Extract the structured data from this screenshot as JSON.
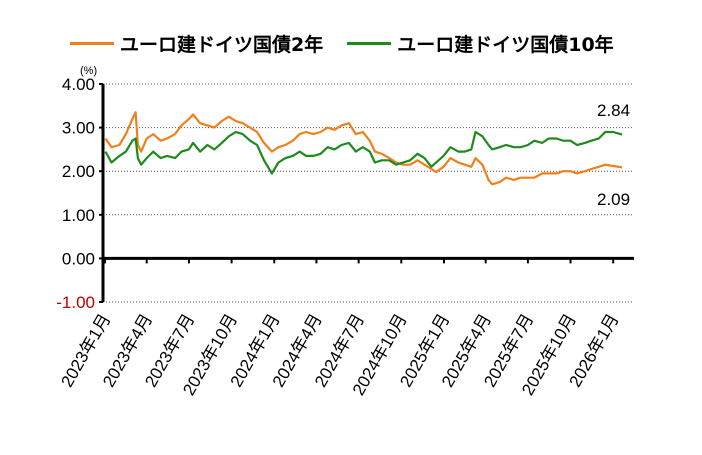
{
  "chart_data": {
    "type": "line",
    "unit_label": "(%)",
    "y_ticks": [
      "4.00",
      "3.00",
      "2.00",
      "1.00",
      "0.00",
      "-1.00"
    ],
    "y_tick_values": [
      4,
      3,
      2,
      1,
      0,
      -1
    ],
    "negative_tick_color": "#c00000",
    "ylim": [
      -1,
      4
    ],
    "grid": "horizontal dotted",
    "legend_placement": "top",
    "x_range": [
      "2023-01-01",
      "2026-01-20"
    ],
    "x_ticks": [
      {
        "date": "2023-01-01",
        "label": "2023年1月"
      },
      {
        "date": "2023-04-01",
        "label": "2023年4月"
      },
      {
        "date": "2023-07-01",
        "label": "2023年7月"
      },
      {
        "date": "2023-10-01",
        "label": "2023年10月"
      },
      {
        "date": "2024-01-01",
        "label": "2024年1月"
      },
      {
        "date": "2024-04-01",
        "label": "2024年4月"
      },
      {
        "date": "2024-07-01",
        "label": "2024年7月"
      },
      {
        "date": "2024-10-01",
        "label": "2024年10月"
      },
      {
        "date": "2025-01-01",
        "label": "2025年1月"
      },
      {
        "date": "2025-04-01",
        "label": "2025年4月"
      },
      {
        "date": "2025-07-01",
        "label": "2025年7月"
      },
      {
        "date": "2025-10-01",
        "label": "2025年10月"
      },
      {
        "date": "2026-01-01",
        "label": "2026年1月"
      }
    ],
    "series": [
      {
        "name": "ユーロ建ドイツ国債2年",
        "color": "#f07f1c",
        "end_label": "2.09",
        "points": [
          [
            "2023-01-02",
            2.75
          ],
          [
            "2023-01-15",
            2.55
          ],
          [
            "2023-02-01",
            2.6
          ],
          [
            "2023-02-15",
            2.85
          ],
          [
            "2023-03-01",
            3.2
          ],
          [
            "2023-03-08",
            3.35
          ],
          [
            "2023-03-13",
            2.6
          ],
          [
            "2023-03-20",
            2.45
          ],
          [
            "2023-04-01",
            2.75
          ],
          [
            "2023-04-15",
            2.85
          ],
          [
            "2023-05-01",
            2.7
          ],
          [
            "2023-05-15",
            2.75
          ],
          [
            "2023-06-01",
            2.85
          ],
          [
            "2023-06-15",
            3.05
          ],
          [
            "2023-07-01",
            3.2
          ],
          [
            "2023-07-10",
            3.3
          ],
          [
            "2023-07-25",
            3.1
          ],
          [
            "2023-08-10",
            3.05
          ],
          [
            "2023-08-25",
            3.0
          ],
          [
            "2023-09-10",
            3.15
          ],
          [
            "2023-09-25",
            3.25
          ],
          [
            "2023-10-10",
            3.15
          ],
          [
            "2023-10-25",
            3.1
          ],
          [
            "2023-11-10",
            3.0
          ],
          [
            "2023-11-25",
            2.9
          ],
          [
            "2023-12-10",
            2.65
          ],
          [
            "2023-12-27",
            2.45
          ],
          [
            "2024-01-10",
            2.55
          ],
          [
            "2024-01-25",
            2.6
          ],
          [
            "2024-02-10",
            2.7
          ],
          [
            "2024-02-25",
            2.85
          ],
          [
            "2024-03-10",
            2.9
          ],
          [
            "2024-03-25",
            2.85
          ],
          [
            "2024-04-10",
            2.9
          ],
          [
            "2024-04-25",
            3.0
          ],
          [
            "2024-05-10",
            2.95
          ],
          [
            "2024-05-25",
            3.05
          ],
          [
            "2024-06-10",
            3.1
          ],
          [
            "2024-06-25",
            2.85
          ],
          [
            "2024-07-10",
            2.9
          ],
          [
            "2024-07-25",
            2.7
          ],
          [
            "2024-08-05",
            2.45
          ],
          [
            "2024-08-20",
            2.4
          ],
          [
            "2024-09-05",
            2.3
          ],
          [
            "2024-09-20",
            2.2
          ],
          [
            "2024-10-05",
            2.15
          ],
          [
            "2024-10-20",
            2.15
          ],
          [
            "2024-11-05",
            2.25
          ],
          [
            "2024-11-20",
            2.15
          ],
          [
            "2024-12-05",
            2.05
          ],
          [
            "2024-12-15",
            1.98
          ],
          [
            "2024-12-31",
            2.1
          ],
          [
            "2025-01-15",
            2.3
          ],
          [
            "2025-02-01",
            2.2
          ],
          [
            "2025-02-15",
            2.15
          ],
          [
            "2025-03-01",
            2.1
          ],
          [
            "2025-03-10",
            2.3
          ],
          [
            "2025-03-25",
            2.15
          ],
          [
            "2025-04-07",
            1.8
          ],
          [
            "2025-04-15",
            1.7
          ],
          [
            "2025-05-01",
            1.75
          ],
          [
            "2025-05-15",
            1.85
          ],
          [
            "2025-06-01",
            1.8
          ],
          [
            "2025-06-15",
            1.85
          ],
          [
            "2025-07-01",
            1.85
          ],
          [
            "2025-07-15",
            1.85
          ],
          [
            "2025-08-01",
            1.95
          ],
          [
            "2025-08-15",
            1.95
          ],
          [
            "2025-09-01",
            1.95
          ],
          [
            "2025-09-15",
            2.0
          ],
          [
            "2025-10-01",
            2.0
          ],
          [
            "2025-10-15",
            1.95
          ],
          [
            "2025-11-01",
            2.0
          ],
          [
            "2025-11-15",
            2.05
          ],
          [
            "2025-12-01",
            2.1
          ],
          [
            "2025-12-15",
            2.15
          ],
          [
            "2026-01-01",
            2.12
          ],
          [
            "2026-01-20",
            2.09
          ]
        ]
      },
      {
        "name": "ユーロ建ドイツ国債10年",
        "color": "#1e8a1e",
        "end_label": "2.84",
        "points": [
          [
            "2023-01-02",
            2.45
          ],
          [
            "2023-01-15",
            2.2
          ],
          [
            "2023-02-01",
            2.35
          ],
          [
            "2023-02-15",
            2.45
          ],
          [
            "2023-03-01",
            2.7
          ],
          [
            "2023-03-08",
            2.75
          ],
          [
            "2023-03-13",
            2.3
          ],
          [
            "2023-03-20",
            2.15
          ],
          [
            "2023-04-01",
            2.3
          ],
          [
            "2023-04-15",
            2.45
          ],
          [
            "2023-05-01",
            2.3
          ],
          [
            "2023-05-15",
            2.35
          ],
          [
            "2023-06-01",
            2.3
          ],
          [
            "2023-06-15",
            2.45
          ],
          [
            "2023-07-01",
            2.5
          ],
          [
            "2023-07-10",
            2.65
          ],
          [
            "2023-07-25",
            2.45
          ],
          [
            "2023-08-10",
            2.6
          ],
          [
            "2023-08-25",
            2.5
          ],
          [
            "2023-09-10",
            2.65
          ],
          [
            "2023-09-25",
            2.8
          ],
          [
            "2023-10-10",
            2.9
          ],
          [
            "2023-10-25",
            2.85
          ],
          [
            "2023-11-10",
            2.7
          ],
          [
            "2023-11-25",
            2.6
          ],
          [
            "2023-12-10",
            2.25
          ],
          [
            "2023-12-27",
            1.95
          ],
          [
            "2024-01-10",
            2.2
          ],
          [
            "2024-01-25",
            2.3
          ],
          [
            "2024-02-10",
            2.35
          ],
          [
            "2024-02-25",
            2.45
          ],
          [
            "2024-03-10",
            2.35
          ],
          [
            "2024-03-25",
            2.35
          ],
          [
            "2024-04-10",
            2.4
          ],
          [
            "2024-04-25",
            2.55
          ],
          [
            "2024-05-10",
            2.5
          ],
          [
            "2024-05-25",
            2.6
          ],
          [
            "2024-06-10",
            2.65
          ],
          [
            "2024-06-25",
            2.45
          ],
          [
            "2024-07-10",
            2.55
          ],
          [
            "2024-07-25",
            2.45
          ],
          [
            "2024-08-05",
            2.2
          ],
          [
            "2024-08-20",
            2.25
          ],
          [
            "2024-09-05",
            2.25
          ],
          [
            "2024-09-20",
            2.15
          ],
          [
            "2024-10-05",
            2.2
          ],
          [
            "2024-10-20",
            2.25
          ],
          [
            "2024-11-05",
            2.4
          ],
          [
            "2024-11-20",
            2.3
          ],
          [
            "2024-12-05",
            2.1
          ],
          [
            "2024-12-15",
            2.2
          ],
          [
            "2024-12-31",
            2.35
          ],
          [
            "2025-01-15",
            2.55
          ],
          [
            "2025-02-01",
            2.45
          ],
          [
            "2025-02-15",
            2.45
          ],
          [
            "2025-03-01",
            2.5
          ],
          [
            "2025-03-10",
            2.9
          ],
          [
            "2025-03-25",
            2.8
          ],
          [
            "2025-04-07",
            2.6
          ],
          [
            "2025-04-15",
            2.5
          ],
          [
            "2025-05-01",
            2.55
          ],
          [
            "2025-05-15",
            2.6
          ],
          [
            "2025-06-01",
            2.55
          ],
          [
            "2025-06-15",
            2.55
          ],
          [
            "2025-07-01",
            2.6
          ],
          [
            "2025-07-15",
            2.7
          ],
          [
            "2025-08-01",
            2.65
          ],
          [
            "2025-08-15",
            2.75
          ],
          [
            "2025-09-01",
            2.75
          ],
          [
            "2025-09-15",
            2.7
          ],
          [
            "2025-10-01",
            2.7
          ],
          [
            "2025-10-15",
            2.6
          ],
          [
            "2025-11-01",
            2.65
          ],
          [
            "2025-11-15",
            2.7
          ],
          [
            "2025-12-01",
            2.75
          ],
          [
            "2025-12-15",
            2.9
          ],
          [
            "2026-01-01",
            2.9
          ],
          [
            "2026-01-20",
            2.84
          ]
        ]
      }
    ]
  }
}
